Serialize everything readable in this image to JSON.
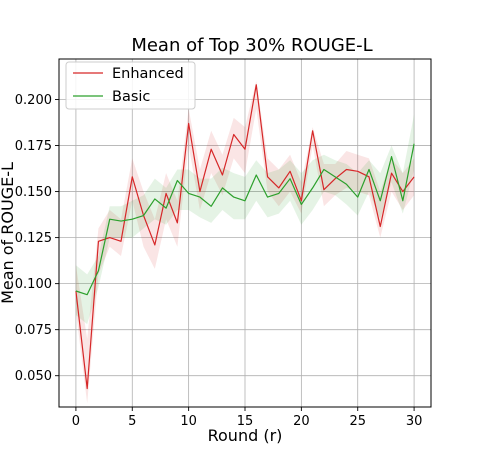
{
  "chart_data": {
    "type": "line",
    "title": "Mean of Top 30% ROUGE-L",
    "xlabel": "Round (r)",
    "ylabel": "Mean of ROUGE-L",
    "xlim": [
      -1.5,
      31.5
    ],
    "ylim": [
      0.033,
      0.222
    ],
    "xticks": [
      0,
      5,
      10,
      15,
      20,
      25,
      30
    ],
    "yticks": [
      0.05,
      0.075,
      0.1,
      0.125,
      0.15,
      0.175,
      0.2
    ],
    "ytick_labels": [
      "0.050",
      "0.075",
      "0.100",
      "0.125",
      "0.150",
      "0.175",
      "0.200"
    ],
    "grid": true,
    "legend_position": "top-left",
    "x": [
      0,
      1,
      2,
      3,
      4,
      5,
      6,
      7,
      8,
      9,
      10,
      11,
      12,
      13,
      14,
      15,
      16,
      17,
      18,
      19,
      20,
      21,
      22,
      23,
      24,
      25,
      26,
      27,
      28,
      29,
      30
    ],
    "series": [
      {
        "name": "Enhanced",
        "color": "#d62728",
        "values": [
          0.096,
          0.043,
          0.123,
          0.125,
          0.123,
          0.158,
          0.137,
          0.121,
          0.149,
          0.133,
          0.187,
          0.15,
          0.173,
          0.159,
          0.181,
          0.173,
          0.208,
          0.158,
          0.152,
          0.161,
          0.145,
          0.183,
          0.151,
          0.157,
          0.162,
          0.161,
          0.158,
          0.131,
          0.16,
          0.15,
          0.158
        ],
        "band_upper": [
          0.11,
          0.07,
          0.13,
          0.14,
          0.135,
          0.168,
          0.15,
          0.135,
          0.16,
          0.145,
          0.195,
          0.162,
          0.183,
          0.17,
          0.19,
          0.185,
          0.21,
          0.168,
          0.162,
          0.17,
          0.155,
          0.185,
          0.165,
          0.165,
          0.172,
          0.17,
          0.168,
          0.15,
          0.168,
          0.16,
          0.168
        ],
        "band_lower": [
          0.085,
          0.035,
          0.105,
          0.12,
          0.115,
          0.145,
          0.12,
          0.108,
          0.135,
          0.12,
          0.175,
          0.14,
          0.16,
          0.148,
          0.168,
          0.16,
          0.195,
          0.15,
          0.142,
          0.15,
          0.138,
          0.175,
          0.142,
          0.148,
          0.152,
          0.15,
          0.148,
          0.125,
          0.15,
          0.14,
          0.148
        ]
      },
      {
        "name": "Basic",
        "color": "#2ca02c",
        "values": [
          0.096,
          0.094,
          0.107,
          0.135,
          0.134,
          0.135,
          0.137,
          0.146,
          0.141,
          0.156,
          0.149,
          0.147,
          0.142,
          0.152,
          0.147,
          0.145,
          0.159,
          0.147,
          0.149,
          0.157,
          0.143,
          0.152,
          0.162,
          0.158,
          0.154,
          0.147,
          0.162,
          0.145,
          0.169,
          0.145,
          0.176
        ],
        "band_upper": [
          0.11,
          0.105,
          0.115,
          0.142,
          0.142,
          0.145,
          0.148,
          0.157,
          0.152,
          0.162,
          0.162,
          0.157,
          0.157,
          0.163,
          0.16,
          0.158,
          0.167,
          0.16,
          0.162,
          0.167,
          0.16,
          0.167,
          0.17,
          0.167,
          0.165,
          0.16,
          0.167,
          0.16,
          0.175,
          0.16,
          0.192
        ],
        "band_lower": [
          0.083,
          0.078,
          0.098,
          0.125,
          0.125,
          0.125,
          0.13,
          0.135,
          0.132,
          0.14,
          0.14,
          0.136,
          0.133,
          0.14,
          0.135,
          0.135,
          0.145,
          0.136,
          0.138,
          0.145,
          0.132,
          0.14,
          0.15,
          0.148,
          0.143,
          0.137,
          0.15,
          0.135,
          0.155,
          0.138,
          0.162
        ]
      }
    ]
  },
  "colors": {
    "grid": "#b0b0b0",
    "axis": "#000000",
    "legend_border": "#cccccc"
  }
}
